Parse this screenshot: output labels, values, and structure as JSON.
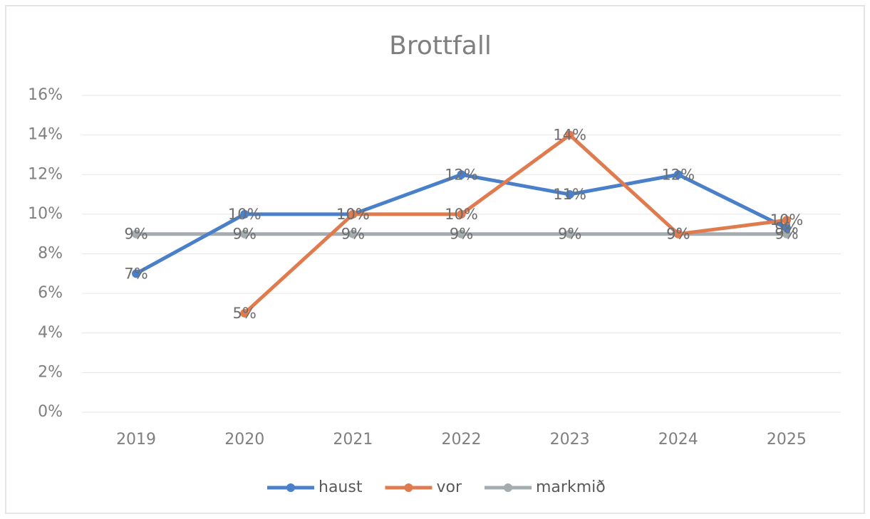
{
  "chart_data": {
    "type": "line",
    "title": "Brottfall",
    "categories": [
      "2019",
      "2020",
      "2021",
      "2022",
      "2023",
      "2024",
      "2025"
    ],
    "series": [
      {
        "name": "haust",
        "color": "#4a7fc9",
        "values": [
          7,
          10,
          10,
          12,
          11,
          12,
          9.3
        ],
        "value_labels": [
          "7%",
          "10%",
          "10%",
          "12%",
          "11%",
          "12%",
          "9%"
        ]
      },
      {
        "name": "vor",
        "color": "#e07b4f",
        "values": [
          null,
          5,
          10,
          10,
          14,
          9,
          9.7
        ],
        "value_labels": [
          null,
          "5%",
          "10%",
          "10%",
          "14%",
          "9%",
          "10%"
        ]
      },
      {
        "name": "markmið",
        "color": "#a5acb0",
        "values": [
          9,
          9,
          9,
          9,
          9,
          9,
          9
        ],
        "value_labels": [
          "9%",
          "9%",
          "9%",
          "9%",
          "9%",
          "9%",
          "9%"
        ]
      }
    ],
    "ylim": [
      0,
      16
    ],
    "yticks": [
      {
        "value": 0,
        "label": "0%"
      },
      {
        "value": 2,
        "label": "2%"
      },
      {
        "value": 4,
        "label": "4%"
      },
      {
        "value": 6,
        "label": "6%"
      },
      {
        "value": 8,
        "label": "8%"
      },
      {
        "value": 10,
        "label": "10%"
      },
      {
        "value": 12,
        "label": "12%"
      },
      {
        "value": 14,
        "label": "14%"
      },
      {
        "value": 16,
        "label": "16%"
      }
    ],
    "grid": true,
    "legend": "bottom"
  }
}
